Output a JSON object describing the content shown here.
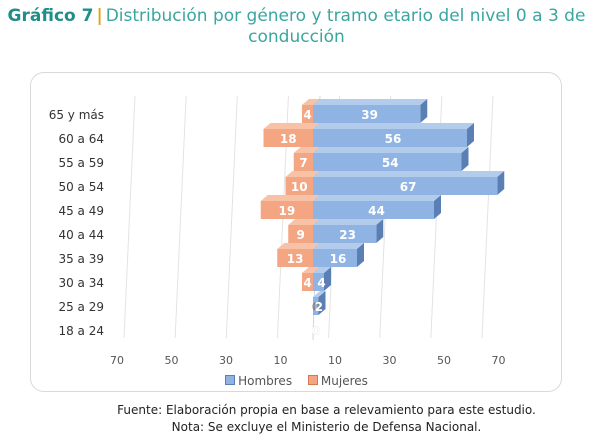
{
  "title": {
    "prefix": "Gráfico 7",
    "separator": "|",
    "text": "Distribución por género y tramo etario del nivel 0 a 3 de conducción"
  },
  "chart_data": {
    "type": "bar",
    "orientation": "horizontal-population-pyramid",
    "categories": [
      "65 y más",
      "60 a 64",
      "55 a 59",
      "50 a 54",
      "45 a 49",
      "40 a 44",
      "35 a 39",
      "30 a 34",
      "25 a 29",
      "18 a 24"
    ],
    "series": [
      {
        "name": "Hombres",
        "values": [
          39,
          56,
          54,
          67,
          44,
          23,
          16,
          4,
          2,
          0
        ],
        "color": "#8fb4e3",
        "side": "right"
      },
      {
        "name": "Mujeres",
        "values": [
          4,
          18,
          7,
          10,
          19,
          9,
          13,
          4,
          0,
          0
        ],
        "color": "#f4a582",
        "side": "left"
      }
    ],
    "x_tick_labels": [
      "70",
      "50",
      "30",
      "10",
      "10",
      "30",
      "50",
      "70"
    ],
    "xlim": [
      -70,
      70
    ],
    "grid": true,
    "legend_position": "bottom"
  },
  "legend": {
    "hombres": "Hombres",
    "mujeres": "Mujeres"
  },
  "footer": {
    "source": "Fuente: Elaboración propia en base a relevamiento para este estudio.",
    "note": "Nota: Se excluye el Ministerio de Defensa Nacional."
  }
}
